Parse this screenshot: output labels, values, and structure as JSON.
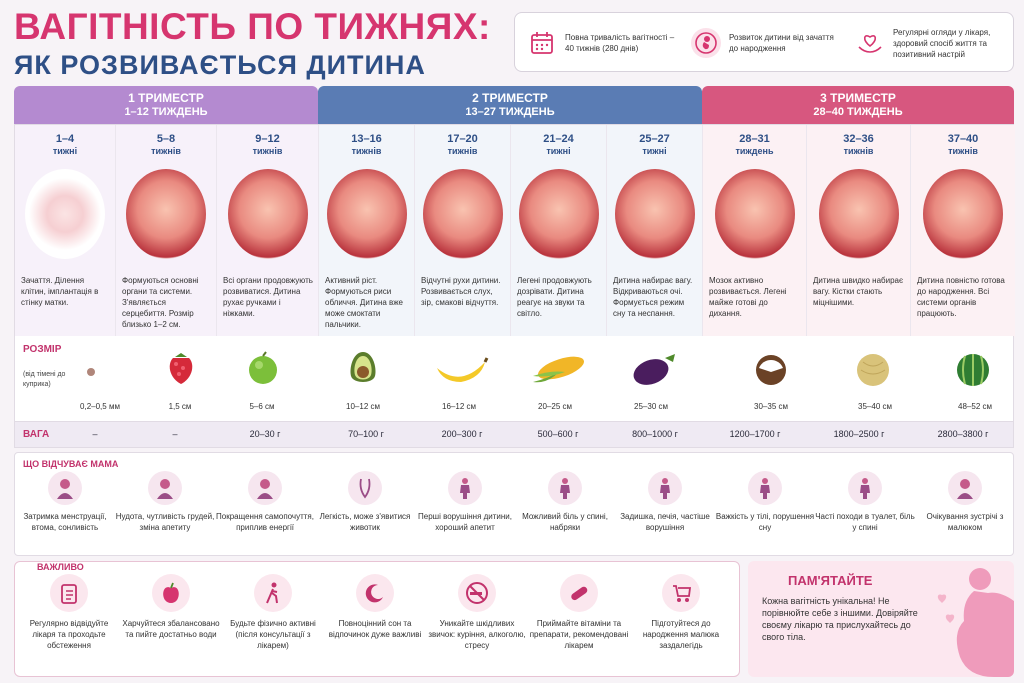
{
  "header": {
    "title": "ВАГІТНІСТЬ ПО ТИЖНЯХ:",
    "subtitle": "ЯК РОЗВИВАЄТЬСЯ ДИТИНА",
    "info": [
      {
        "text": "Повна тривалість вагітності – 40 тижнів (280 днів)",
        "icon": "calendar-icon"
      },
      {
        "text": "Розвиток дитини від зачаття до народження",
        "icon": "fetus-icon"
      },
      {
        "text": "Регулярні огляди у лікаря, здоровий спосіб життя та позитивний настрій",
        "icon": "heart-hands-icon"
      }
    ]
  },
  "trimesters": [
    {
      "name": "1 ТРИМЕСТР",
      "weeks": "1–12 ТИЖДЕНЬ",
      "color": "#b48ad0"
    },
    {
      "name": "2 ТРИМЕСТР",
      "weeks": "13–27 ТИЖДЕНЬ",
      "color": "#5a7cb4"
    },
    {
      "name": "3 ТРИМЕСТР",
      "weeks": "28–40 ТИЖДЕНЬ",
      "color": "#d7577f"
    }
  ],
  "columns": [
    {
      "weeks": "1–4",
      "unit": "тижні",
      "desc": "Зачаття. Ділення клітин, імплантація в стінку матки.",
      "size": "0,2–0,5 мм",
      "fruit": "poppy-seed",
      "weight": "–"
    },
    {
      "weeks": "5–8",
      "unit": "тижнів",
      "desc": "Формуються основні органи та системи. З'являється серцебиття. Розмір близько 1–2 см.",
      "size": "1,5 см",
      "fruit": "raspberry",
      "weight": "–"
    },
    {
      "weeks": "9–12",
      "unit": "тижнів",
      "desc": "Всі органи продовжують розвиватися. Дитина рухає ручками і ніжками.",
      "size": "5–6 см",
      "fruit": "lime",
      "weight": "20–30 г"
    },
    {
      "weeks": "13–16",
      "unit": "тижнів",
      "desc": "Активний ріст. Формуються риси обличчя. Дитина вже може смоктати пальчики.",
      "size": "10–12 см",
      "fruit": "avocado",
      "weight": "70–100 г"
    },
    {
      "weeks": "17–20",
      "unit": "тижнів",
      "desc": "Відчутні рухи дитини. Розвивається слух, зір, смакові відчуття.",
      "size": "16–12 см",
      "fruit": "banana",
      "weight": "200–300 г"
    },
    {
      "weeks": "21–24",
      "unit": "тижні",
      "desc": "Легені продовжують дозрівати. Дитина реагує на звуки та світло.",
      "size": "20–25 см",
      "fruit": "corn",
      "weight": "500–600 г"
    },
    {
      "weeks": "25–27",
      "unit": "тижні",
      "desc": "Дитина набирає вагу. Відкриваються очі. Формується режим сну та неспання.",
      "size": "25–30 см",
      "fruit": "eggplant",
      "weight": "800–1000 г"
    },
    {
      "weeks": "28–31",
      "unit": "тиждень",
      "desc": "Мозок активно розвивається. Легені майже готові до дихання.",
      "size": "30–35 см",
      "fruit": "coconut",
      "weight": "1200–1700 г"
    },
    {
      "weeks": "32–36",
      "unit": "тижнів",
      "desc": "Дитина швидко набирає вагу. Кістки стають міцнішими.",
      "size": "35–40 см",
      "fruit": "melon",
      "weight": "1800–2500 г"
    },
    {
      "weeks": "37–40",
      "unit": "тижнів",
      "desc": "Дитина повністю готова до народження. Всі системи органів працюють.",
      "size": "48–52 см",
      "fruit": "watermelon",
      "weight": "2800–3800 г"
    }
  ],
  "size_row": {
    "label": "РОЗМІР",
    "note": "(від тімені до куприка)"
  },
  "weight_row": {
    "label": "ВАГА"
  },
  "mom": {
    "label": "ЩО ВІДЧУВАЄ МАМА",
    "items": [
      "Затримка менструації, втома, сонливість",
      "Нудота, чутливість грудей, зміна апетиту",
      "Покращення самопочуття, приплив енергії",
      "Легкість, може з'явитися животик",
      "Перші ворушіння дитини, хороший апетит",
      "Можливий біль у спині, набряки",
      "Задишка, печія, частіше ворушіння",
      "Важкість у тілі, порушення сну",
      "Часті походи в туалет, біль у спині",
      "Очікування зустрічі з малюком"
    ]
  },
  "important": {
    "label": "ВАЖЛИВО",
    "items": [
      {
        "text": "Регулярно відвідуйте лікаря та проходьте обстеження",
        "icon": "clipboard-icon"
      },
      {
        "text": "Харчуйтеся збалансовано та пийте достатньо води",
        "icon": "apple-icon"
      },
      {
        "text": "Будьте фізично активні (після консультації з лікарем)",
        "icon": "walking-icon"
      },
      {
        "text": "Повноцінний сон та відпочинок дуже важливі",
        "icon": "moon-icon"
      },
      {
        "text": "Уникайте шкідливих звичок: куріння, алкоголю, стресу",
        "icon": "no-smoking-icon"
      },
      {
        "text": "Приймайте вітаміни та препарати, рекомендовані лікарем",
        "icon": "pill-icon"
      },
      {
        "text": "Підготуйтеся до народження малюка заздалегідь",
        "icon": "stroller-icon"
      }
    ]
  },
  "remember": {
    "title": "ПАМ'ЯТАЙТЕ",
    "text": "Кожна вагітність унікальна! Не порівнюйте себе з іншими. Довіряйте своєму лікарю та прислухайтесь до свого тіла."
  }
}
